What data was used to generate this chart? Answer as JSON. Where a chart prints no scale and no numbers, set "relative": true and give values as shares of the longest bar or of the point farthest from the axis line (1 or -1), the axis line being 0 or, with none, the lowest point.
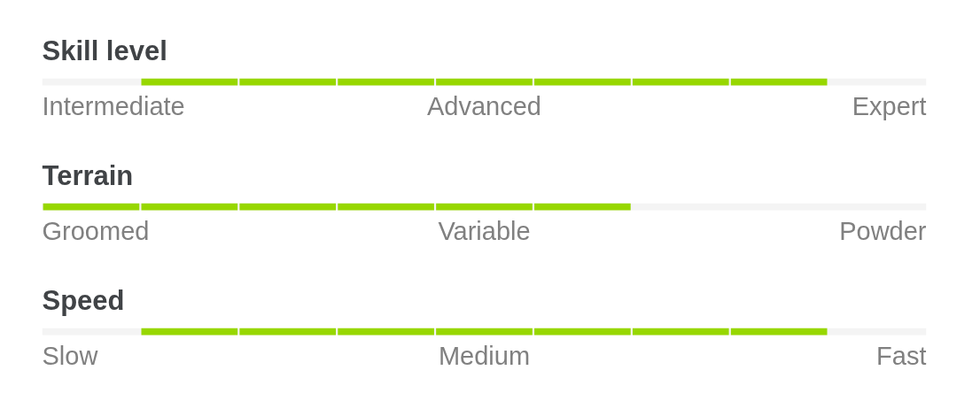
{
  "chart_data": [
    {
      "type": "bar",
      "title": "Skill level",
      "categories": [
        "Intermediate",
        null,
        null,
        null,
        "Advanced",
        null,
        null,
        null,
        "Expert"
      ],
      "values": [
        0,
        1,
        1,
        1,
        1,
        1,
        1,
        1,
        0
      ],
      "relative": true,
      "color": "#97d700",
      "tick_labels": "x"
    },
    {
      "type": "bar",
      "title": "Terrain",
      "categories": [
        "Groomed",
        null,
        null,
        null,
        "Variable",
        null,
        null,
        null,
        "Powder"
      ],
      "values": [
        1,
        1,
        1,
        1,
        1,
        1,
        0,
        0,
        0
      ],
      "relative": true,
      "color": "#97d700",
      "tick_labels": "x"
    },
    {
      "type": "bar",
      "title": "Speed",
      "categories": [
        "Slow",
        null,
        null,
        null,
        "Medium",
        null,
        null,
        null,
        "Fast"
      ],
      "values": [
        0,
        1,
        1,
        1,
        1,
        1,
        1,
        1,
        0
      ],
      "relative": true,
      "color": "#97d700",
      "tick_labels": "x"
    }
  ]
}
